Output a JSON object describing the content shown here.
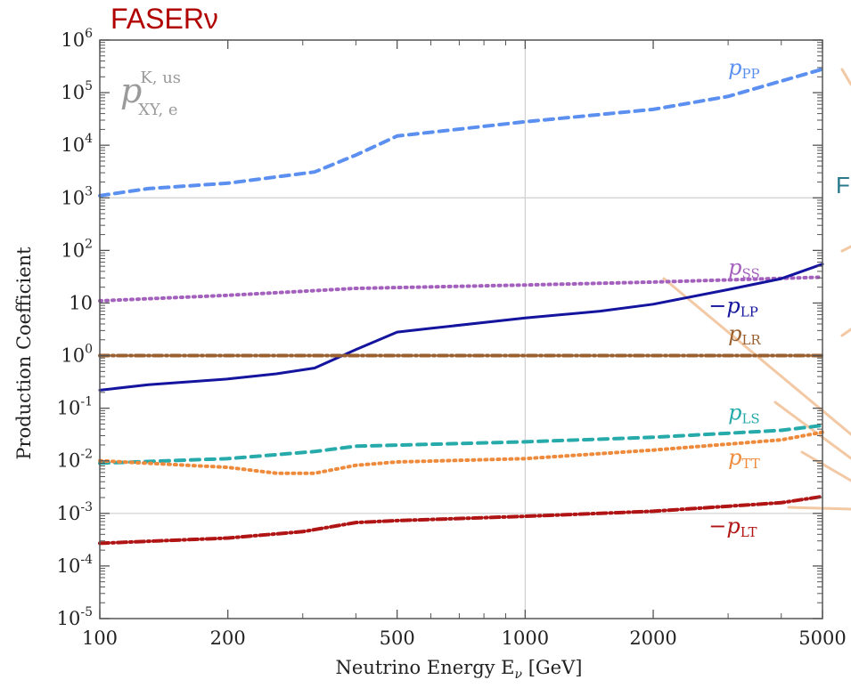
{
  "header": {
    "title": "FASERν"
  },
  "side_letter": "F",
  "colors": {
    "pp": "#5b8ff0",
    "ss": "#a460bd",
    "lp": "#14149e",
    "lr": "#9a6030",
    "ls": "#26aaaa",
    "tt": "#ee8a3c",
    "lt": "#b01414",
    "overlay": "#f1c49b"
  },
  "chart_data": {
    "type": "line",
    "title": "",
    "annotation": {
      "base": "p",
      "sup": "K, us",
      "sub": "XY, e"
    },
    "xlabel": "Neutrino Energy E",
    "xlabel_sub": "ν",
    "xlabel_unit": "[GeV]",
    "ylabel": "Production Coefficient",
    "xscale": "log",
    "yscale": "log",
    "xlim": [
      100,
      5000
    ],
    "ylim": [
      1e-05,
      1000000
    ],
    "x_ticks": [
      {
        "value": 100,
        "label": "100"
      },
      {
        "value": 200,
        "label": "200"
      },
      {
        "value": 500,
        "label": "500"
      },
      {
        "value": 1000,
        "label": "1000"
      },
      {
        "value": 2000,
        "label": "2000"
      },
      {
        "value": 5000,
        "label": "5000"
      }
    ],
    "y_ticks": [
      {
        "value": 1000000,
        "base": "10",
        "exp": "6"
      },
      {
        "value": 100000,
        "base": "10",
        "exp": "5"
      },
      {
        "value": 10000,
        "base": "10",
        "exp": "4"
      },
      {
        "value": 1000,
        "base": "10",
        "exp": "3"
      },
      {
        "value": 100,
        "base": "10",
        "exp": "2"
      },
      {
        "value": 10,
        "base": "10",
        "exp": ""
      },
      {
        "value": 1,
        "base": "10",
        "exp": "0"
      },
      {
        "value": 0.1,
        "base": "10",
        "exp": "-1"
      },
      {
        "value": 0.01,
        "base": "10",
        "exp": "-2"
      },
      {
        "value": 0.001,
        "base": "10",
        "exp": "-3"
      },
      {
        "value": 0.0001,
        "base": "10",
        "exp": "-4"
      },
      {
        "value": 1e-05,
        "base": "10",
        "exp": "-5"
      }
    ],
    "grid": true,
    "series": [
      {
        "key": "pp",
        "sign": "",
        "base": "p",
        "sub": "PP",
        "color": "#5b8ff0",
        "dash": "10,7",
        "width": 4,
        "label_x": 3000,
        "label_y": 220000,
        "x": [
          100,
          130,
          200,
          320,
          400,
          500,
          1000,
          2000,
          3000,
          5000
        ],
        "y": [
          1100,
          1500,
          1900,
          3100,
          6500,
          15000,
          28000,
          48000,
          85000,
          280000
        ]
      },
      {
        "key": "ss",
        "sign": "",
        "base": "p",
        "sub": "SS",
        "color": "#a460bd",
        "dash": "2,5",
        "width": 4,
        "label_x": 3000,
        "label_y": 35,
        "x": [
          100,
          200,
          400,
          1000,
          2000,
          5000
        ],
        "y": [
          11,
          14,
          19,
          22,
          25,
          31
        ]
      },
      {
        "key": "lp",
        "sign": "−",
        "base": "p",
        "sub": "LP",
        "color": "#14149e",
        "dash": "",
        "width": 3,
        "label_x": 2700,
        "label_y": 6.5,
        "x": [
          100,
          130,
          200,
          260,
          320,
          400,
          500,
          600,
          1000,
          1500,
          2000,
          3000,
          4000,
          5000
        ],
        "y": [
          0.22,
          0.28,
          0.36,
          0.45,
          0.58,
          1.3,
          2.8,
          3.3,
          5.2,
          7,
          9.5,
          18,
          29,
          55
        ]
      },
      {
        "key": "lr",
        "sign": "",
        "base": "p",
        "sub": "LR",
        "color": "#9a6030",
        "dash": "10,4,2,4",
        "width": 4,
        "label_x": 3000,
        "label_y": 1.9,
        "x": [
          100,
          5000
        ],
        "y": [
          1,
          1
        ]
      },
      {
        "key": "ls",
        "sign": "",
        "base": "p",
        "sub": "LS",
        "color": "#26aaaa",
        "dash": "10,7",
        "width": 4,
        "label_x": 3000,
        "label_y": 0.06,
        "x": [
          100,
          200,
          320,
          400,
          1000,
          2000,
          4000,
          5000
        ],
        "y": [
          0.009,
          0.011,
          0.015,
          0.019,
          0.023,
          0.028,
          0.038,
          0.047
        ]
      },
      {
        "key": "tt",
        "sign": "",
        "base": "p",
        "sub": "TT",
        "color": "#ee8a3c",
        "dash": "2,5",
        "width": 4,
        "label_x": 3000,
        "label_y": 0.0085,
        "x": [
          100,
          200,
          260,
          320,
          400,
          500,
          1000,
          2000,
          4000,
          5000
        ],
        "y": [
          0.01,
          0.0075,
          0.0058,
          0.0058,
          0.0082,
          0.0095,
          0.011,
          0.016,
          0.025,
          0.035
        ]
      },
      {
        "key": "lt",
        "sign": "−",
        "base": "p",
        "sub": "LT",
        "color": "#b01414",
        "dash": "10,4,2,4",
        "width": 4,
        "label_x": 2700,
        "label_y": 0.00042,
        "x": [
          100,
          200,
          300,
          400,
          500,
          1000,
          2000,
          4000,
          5000
        ],
        "y": [
          0.00027,
          0.00034,
          0.00045,
          0.00067,
          0.00073,
          0.00088,
          0.0011,
          0.0016,
          0.0021
        ]
      }
    ]
  }
}
